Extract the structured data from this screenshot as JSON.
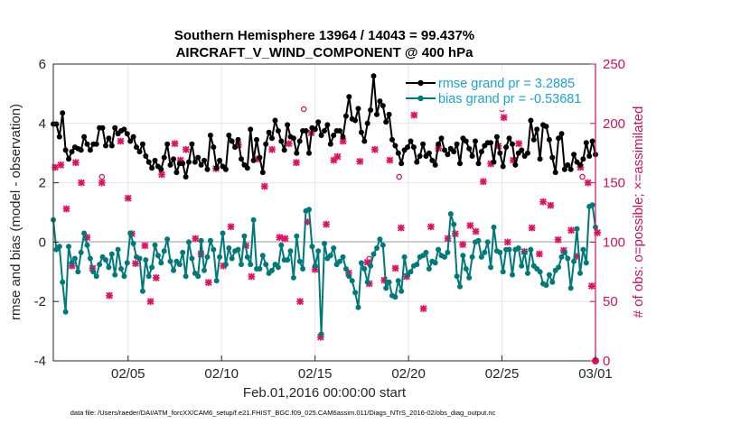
{
  "chart_data": {
    "type": "line",
    "title_line1": "Southern Hemisphere 13964 / 14043 = 99.437%",
    "title_line2": "AIRCRAFT_V_WIND_COMPONENT @ 400 hPa",
    "xlabel": "Feb.01,2016 00:00:00 start",
    "ylabel_left": "rmse and bias (model - observation)",
    "ylabel_right": "# of obs: o=possible; ×=assimilated",
    "footnote": "data file: /Users/raeder/DAI/ATM_forcXX/CAM6_setup/f.e21.FHIST_BGC.f09_025.CAM6assim.011/Diags_NTrS_2016-02/obs_diag_output.nc",
    "xlim": [
      1,
      30
    ],
    "ylim_left": [
      -4,
      6
    ],
    "ylim_right": [
      0,
      250
    ],
    "x_ticks": [
      5,
      10,
      15,
      20,
      25,
      30
    ],
    "x_tick_labels": [
      "02/05",
      "02/10",
      "02/15",
      "02/20",
      "02/25",
      "03/01"
    ],
    "y_left_ticks": [
      "-4",
      "-2",
      "0",
      "2",
      "4",
      "6"
    ],
    "y_right_ticks": [
      "0",
      "50",
      "100",
      "150",
      "200",
      "250"
    ],
    "grid": true,
    "legend_position": "top-right",
    "colors": {
      "rmse": "#000000",
      "bias": "#00797a",
      "obs": "#e0115f",
      "axis_right": "#d1105a",
      "legend_text": "#1aa3d6",
      "zero_line": "#b3b3b3"
    },
    "series": [
      {
        "name": "rmse grand pr = 3.2885",
        "axis": "left",
        "values": [
          3.98,
          3.98,
          3.55,
          4.35,
          3.1,
          2.8,
          3.05,
          3.2,
          3.15,
          3.1,
          3.55,
          3.3,
          3.1,
          3.3,
          3.3,
          3.85,
          3.85,
          3.25,
          3.5,
          3.25,
          3.85,
          3.65,
          3.75,
          3.8,
          3.65,
          3.4,
          3.55,
          3.2,
          3.05,
          3.3,
          2.9,
          2.7,
          2.5,
          2.75,
          2.55,
          2.45,
          2.85,
          3.3,
          2.6,
          2.8,
          2.35,
          2.65,
          2.65,
          2.2,
          2.7,
          3.3,
          2.7,
          2.85,
          2.6,
          2.75,
          2.45,
          3.6,
          3.2,
          2.5,
          2.75,
          2.55,
          2.45,
          3.6,
          3.4,
          3.2,
          3.45,
          2.8,
          2.6,
          2.5,
          3.8,
          2.75,
          3.45,
          2.85,
          2.35,
          3.3,
          3.7,
          3.5,
          4.1,
          3.75,
          3.4,
          3.1,
          3.95,
          3.55,
          3.5,
          3.0,
          3.4,
          3.75,
          3.75,
          3.0,
          3.85,
          3.8,
          4.05,
          3.6,
          3.75,
          3.95,
          3.3,
          3.6,
          3.75,
          3.75,
          3.55,
          4.25,
          4.9,
          4.15,
          4.1,
          4.5,
          3.7,
          3.4,
          4.0,
          4.45,
          5.6,
          4.3,
          4.75,
          4.6,
          4.05,
          4.3,
          3.45,
          3.25,
          3.0,
          2.65,
          3.1,
          3.2,
          3.4,
          3.2,
          2.7,
          2.9,
          3.3,
          2.9,
          3.0,
          2.75,
          2.6,
          3.3,
          3.5,
          3.1,
          2.95,
          3.15,
          3.05,
          3.3,
          2.65,
          3.5,
          3.4,
          3.15,
          2.9,
          3.4,
          2.65,
          3.05,
          3.25,
          3.35,
          3.35,
          2.7,
          3.55,
          3.0,
          2.55,
          3.2,
          3.5,
          3.3,
          2.6,
          3.0,
          3.1,
          2.9,
          3.0,
          4.1,
          3.45,
          3.8,
          2.8,
          3.95,
          3.9,
          3.45,
          2.85,
          2.35,
          3.5,
          3.65,
          2.45,
          2.6,
          2.45,
          2.95,
          2.7,
          2.6,
          2.8,
          3.35,
          2.9,
          3.4,
          2.95
        ]
      },
      {
        "name": "bias grand pr = -0.53681",
        "axis": "left",
        "values": [
          0.75,
          -0.25,
          -0.15,
          -1.35,
          -2.35,
          -0.15,
          -0.7,
          -0.55,
          -1.0,
          -0.35,
          0.3,
          -0.1,
          -0.55,
          -1.0,
          -1.15,
          -0.75,
          -0.5,
          -0.6,
          -0.85,
          -0.4,
          -1.1,
          -0.25,
          -0.9,
          -1.15,
          -0.7,
          0.3,
          -0.05,
          -0.5,
          -0.55,
          -1.65,
          -0.6,
          -1.15,
          -0.85,
          -0.1,
          -0.45,
          -0.7,
          -0.3,
          0.1,
          -0.65,
          -0.95,
          -0.65,
          -0.75,
          -0.35,
          -1.15,
          0.0,
          -0.55,
          -1.05,
          -1.15,
          0.05,
          -0.95,
          -0.5,
          0.05,
          -0.25,
          -1.3,
          -0.5,
          0.3,
          -0.75,
          -0.2,
          -0.55,
          -0.3,
          -0.25,
          -0.75,
          0.2,
          -0.5,
          -0.75,
          0.75,
          -0.9,
          -0.9,
          -0.45,
          -0.75,
          -1.05,
          -0.95,
          -0.75,
          -0.85,
          -0.1,
          -0.6,
          -0.6,
          -0.3,
          -1.2,
          0.2,
          -0.65,
          -0.9,
          1.05,
          1.1,
          -0.15,
          -0.8,
          -0.3,
          -3.1,
          -0.05,
          -0.55,
          -0.45,
          -0.2,
          -0.75,
          -0.65,
          -0.5,
          -0.9,
          -1.15,
          -1.3,
          -1.7,
          -2.2,
          -0.7,
          -0.9,
          -1.35,
          -0.8,
          -0.4,
          -0.2,
          0.1,
          -0.1,
          -1.55,
          -1.35,
          -1.8,
          -1.85,
          -1.3,
          -1.65,
          -0.5,
          -1.1,
          -1.0,
          -0.8,
          -0.75,
          -0.5,
          -0.45,
          -0.35,
          -0.9,
          -0.65,
          -0.7,
          -0.25,
          -0.45,
          -0.5,
          -0.35,
          0.95,
          0.6,
          -1.15,
          -1.5,
          -0.45,
          -0.9,
          -1.2,
          -0.5,
          0.0,
          0.05,
          -0.5,
          -0.35,
          0.0,
          -0.85,
          0.5,
          -0.3,
          -0.35,
          -1.0,
          -0.25,
          -0.25,
          -1.1,
          -0.25,
          -0.2,
          -0.8,
          -0.35,
          -1.05,
          -0.25,
          -0.8,
          -0.9,
          -1.0,
          -1.4,
          -1.45,
          -1.1,
          -1.35,
          -0.95,
          -0.85,
          -0.5,
          -0.35,
          -0.55,
          -1.55,
          -0.65,
          0.45,
          -1.05,
          -0.25,
          -0.7,
          1.2,
          1.25,
          0.5
        ]
      },
      {
        "name": "# of obs assimilated",
        "axis": "right",
        "marker": "asterisk",
        "points": [
          [
            1.1,
            163
          ],
          [
            1.4,
            165
          ],
          [
            1.7,
            128
          ],
          [
            2.0,
            80
          ],
          [
            2.2,
            167
          ],
          [
            2.5,
            150
          ],
          [
            2.8,
            104
          ],
          [
            3.1,
            78
          ],
          [
            3.6,
            150
          ],
          [
            4.0,
            55
          ],
          [
            4.6,
            185
          ],
          [
            5.0,
            137
          ],
          [
            5.2,
            107
          ],
          [
            5.4,
            82
          ],
          [
            5.9,
            97
          ],
          [
            6.2,
            50
          ],
          [
            6.5,
            70
          ],
          [
            6.8,
            157
          ],
          [
            7.5,
            183
          ],
          [
            7.8,
            169
          ],
          [
            8.1,
            178
          ],
          [
            8.6,
            103
          ],
          [
            8.9,
            90
          ],
          [
            9.3,
            66
          ],
          [
            9.7,
            162
          ],
          [
            10.1,
            80
          ],
          [
            10.5,
            113
          ],
          [
            10.9,
            182
          ],
          [
            11.3,
            97
          ],
          [
            11.6,
            71
          ],
          [
            11.9,
            170
          ],
          [
            12.3,
            147
          ],
          [
            12.7,
            178
          ],
          [
            13.1,
            104
          ],
          [
            13.4,
            103
          ],
          [
            13.6,
            183
          ],
          [
            14.0,
            167
          ],
          [
            14.2,
            50
          ],
          [
            14.6,
            117
          ],
          [
            14.8,
            192
          ],
          [
            15.0,
            77
          ],
          [
            15.3,
            20
          ],
          [
            15.6,
            115
          ],
          [
            16.0,
            169
          ],
          [
            16.2,
            172
          ],
          [
            16.5,
            185
          ],
          [
            16.8,
            74
          ],
          [
            17.4,
            168
          ],
          [
            17.8,
            83
          ],
          [
            17.9,
            65
          ],
          [
            18.2,
            178
          ],
          [
            18.7,
            68
          ],
          [
            19.0,
            169
          ],
          [
            19.3,
            78
          ],
          [
            19.6,
            112
          ],
          [
            19.9,
            71
          ],
          [
            20.3,
            207
          ],
          [
            20.8,
            44
          ],
          [
            21.2,
            113
          ],
          [
            21.6,
            179
          ],
          [
            22.1,
            103
          ],
          [
            22.5,
            107
          ],
          [
            22.9,
            98
          ],
          [
            23.3,
            114
          ],
          [
            23.6,
            109
          ],
          [
            24.0,
            151
          ],
          [
            24.4,
            166
          ],
          [
            24.8,
            181
          ],
          [
            25.1,
            205
          ],
          [
            25.3,
            100
          ],
          [
            25.6,
            169
          ],
          [
            25.9,
            183
          ],
          [
            26.2,
            92
          ],
          [
            26.6,
            112
          ],
          [
            27.0,
            90
          ],
          [
            27.2,
            134
          ],
          [
            27.6,
            131
          ],
          [
            28.0,
            102
          ],
          [
            28.3,
            93
          ],
          [
            28.7,
            110
          ],
          [
            29.0,
            88
          ],
          [
            29.2,
            163
          ],
          [
            29.6,
            150
          ],
          [
            29.8,
            63
          ],
          [
            30.1,
            108
          ]
        ]
      },
      {
        "name": "# of obs possible",
        "axis": "right",
        "marker": "circle",
        "points": [
          [
            3.6,
            155
          ],
          [
            14.4,
            212
          ],
          [
            17.9,
            86
          ],
          [
            19.5,
            155
          ],
          [
            25.0,
            212
          ],
          [
            29.3,
            155
          ]
        ]
      }
    ]
  }
}
